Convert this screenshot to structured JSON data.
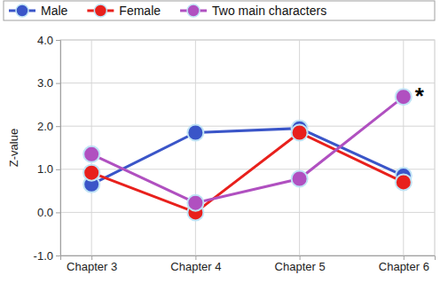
{
  "chart_data": {
    "type": "line",
    "categories": [
      "Chapter 3",
      "Chapter 4",
      "Chapter 5",
      "Chapter 6"
    ],
    "series": [
      {
        "name": "Male",
        "color": "#3a55c8",
        "values": [
          0.65,
          1.85,
          1.95,
          0.85
        ]
      },
      {
        "name": "Female",
        "color": "#e8201c",
        "values": [
          0.92,
          0.0,
          1.85,
          0.7
        ]
      },
      {
        "name": "Two main characters",
        "color": "#b050c0",
        "values": [
          1.35,
          0.22,
          0.78,
          2.68
        ]
      }
    ],
    "y_label": "Z-value",
    "annotation": "*",
    "ylim": [
      -1,
      4
    ],
    "yticks": [
      {
        "value": -1,
        "label": "-1.0"
      },
      {
        "value": 0,
        "label": "0.0"
      },
      {
        "value": 1,
        "label": "1.0"
      },
      {
        "value": 2,
        "label": "2.0"
      },
      {
        "value": 3,
        "label": "3.0"
      },
      {
        "value": 4,
        "label": "4.0"
      }
    ],
    "grid": true,
    "marker": "circle",
    "legend": "top"
  }
}
